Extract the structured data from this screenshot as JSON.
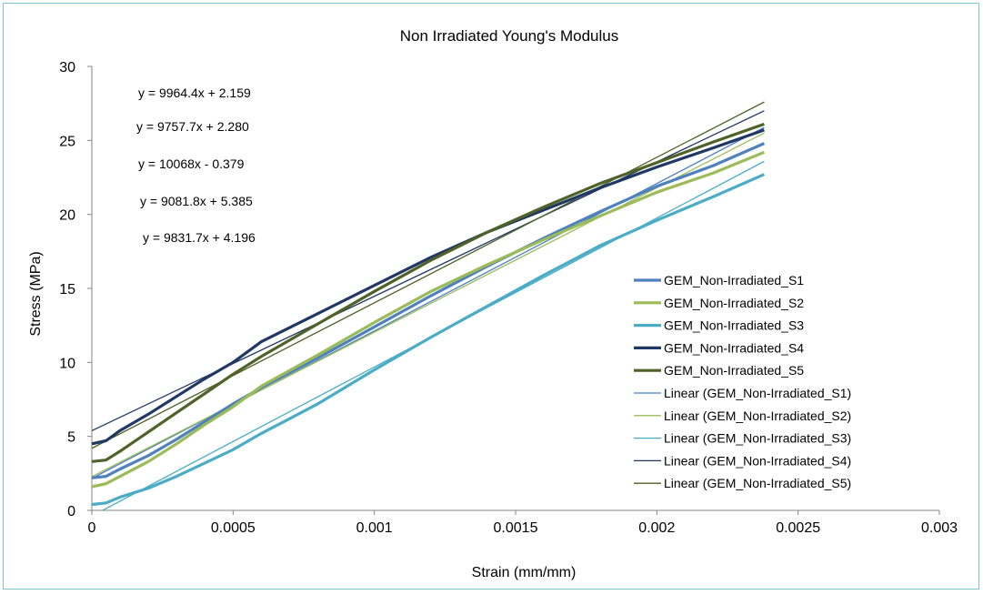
{
  "chart_data": {
    "type": "line",
    "title": "Non Irradiated Young's Modulus",
    "xlabel": "Strain (mm/mm)",
    "ylabel": "Stress (MPa)",
    "xlim": [
      0,
      0.003
    ],
    "ylim": [
      0,
      30
    ],
    "x_ticks": [
      "0",
      "0.0005",
      "0.001",
      "0.0015",
      "0.002",
      "0.0025",
      "0.003"
    ],
    "y_ticks": [
      "0",
      "5",
      "10",
      "15",
      "20",
      "25",
      "30"
    ],
    "grid": false,
    "legend_position": "right",
    "series": [
      {
        "name": "GEM_Non-Irradiated_S1",
        "color": "#4f81bd",
        "x": [
          0,
          5e-05,
          0.0001,
          0.0002,
          0.0003,
          0.0004,
          0.0005,
          0.0006,
          0.0008,
          0.001,
          0.0012,
          0.0014,
          0.0016,
          0.0018,
          0.002,
          0.0022,
          0.00238
        ],
        "y": [
          2.2,
          2.3,
          2.8,
          3.7,
          4.8,
          6.0,
          7.2,
          8.3,
          10.3,
          12.4,
          14.5,
          16.5,
          18.4,
          20.2,
          21.9,
          23.3,
          24.8
        ]
      },
      {
        "name": "GEM_Non-Irradiated_S2",
        "color": "#9bbb59",
        "x": [
          0,
          5e-05,
          0.0001,
          0.0002,
          0.0003,
          0.0004,
          0.0005,
          0.0006,
          0.0008,
          0.001,
          0.0012,
          0.0014,
          0.0016,
          0.0018,
          0.002,
          0.0022,
          0.00238
        ],
        "y": [
          1.6,
          1.8,
          2.3,
          3.3,
          4.5,
          5.8,
          7.0,
          8.4,
          10.5,
          12.7,
          14.8,
          16.6,
          18.3,
          19.9,
          21.5,
          22.8,
          24.2
        ]
      },
      {
        "name": "GEM_Non-Irradiated_S3",
        "color": "#4bacc6",
        "x": [
          0,
          5e-05,
          0.0001,
          0.0002,
          0.0003,
          0.0004,
          0.0005,
          0.0006,
          0.0008,
          0.001,
          0.0012,
          0.0014,
          0.0016,
          0.0018,
          0.002,
          0.0022,
          0.00238
        ],
        "y": [
          0.4,
          0.5,
          0.9,
          1.5,
          2.3,
          3.2,
          4.1,
          5.2,
          7.2,
          9.5,
          11.7,
          13.8,
          15.9,
          17.9,
          19.6,
          21.2,
          22.7
        ]
      },
      {
        "name": "GEM_Non-Irradiated_S4",
        "color": "#1f3864",
        "x": [
          0,
          5e-05,
          0.0001,
          0.0002,
          0.0003,
          0.0004,
          0.0005,
          0.0006,
          0.0008,
          0.001,
          0.0012,
          0.0014,
          0.0016,
          0.0018,
          0.002,
          0.0022,
          0.00238
        ],
        "y": [
          4.5,
          4.7,
          5.4,
          6.5,
          7.7,
          8.9,
          10.0,
          11.4,
          13.3,
          15.2,
          17.1,
          18.8,
          20.3,
          21.8,
          23.2,
          24.5,
          25.7
        ]
      },
      {
        "name": "GEM_Non-Irradiated_S5",
        "color": "#4f6228",
        "x": [
          0,
          5e-05,
          0.0001,
          0.0002,
          0.0003,
          0.0004,
          0.0005,
          0.0006,
          0.0008,
          0.001,
          0.0012,
          0.0014,
          0.0016,
          0.0018,
          0.002,
          0.0022,
          0.00238
        ],
        "y": [
          3.3,
          3.4,
          4.0,
          5.3,
          6.6,
          7.9,
          9.2,
          10.4,
          12.6,
          14.8,
          16.9,
          18.8,
          20.5,
          22.1,
          23.5,
          24.9,
          26.1
        ]
      }
    ],
    "trendlines": [
      {
        "name": "Linear (GEM_Non-Irradiated_S1)",
        "color": "#4f81bd",
        "slope": 9964.4,
        "intercept": 2.159,
        "equation": "y = 9964.4x + 2.159"
      },
      {
        "name": "Linear (GEM_Non-Irradiated_S2)",
        "color": "#9bbb59",
        "slope": 9757.7,
        "intercept": 2.28,
        "equation": "y = 9757.7x + 2.280"
      },
      {
        "name": "Linear (GEM_Non-Irradiated_S3)",
        "color": "#4bacc6",
        "slope": 10068,
        "intercept": -0.379,
        "equation": "y = 10068x - 0.379"
      },
      {
        "name": "Linear (GEM_Non-Irradiated_S4)",
        "color": "#1f3864",
        "slope": 9081.8,
        "intercept": 5.385,
        "equation": "y = 9081.8x + 5.385"
      },
      {
        "name": "Linear (GEM_Non-Irradiated_S5)",
        "color": "#4f6228",
        "slope": 9831.7,
        "intercept": 4.196,
        "equation": "y = 9831.7x + 4.196"
      }
    ],
    "trendline_x_range": [
      0,
      0.00238
    ]
  }
}
